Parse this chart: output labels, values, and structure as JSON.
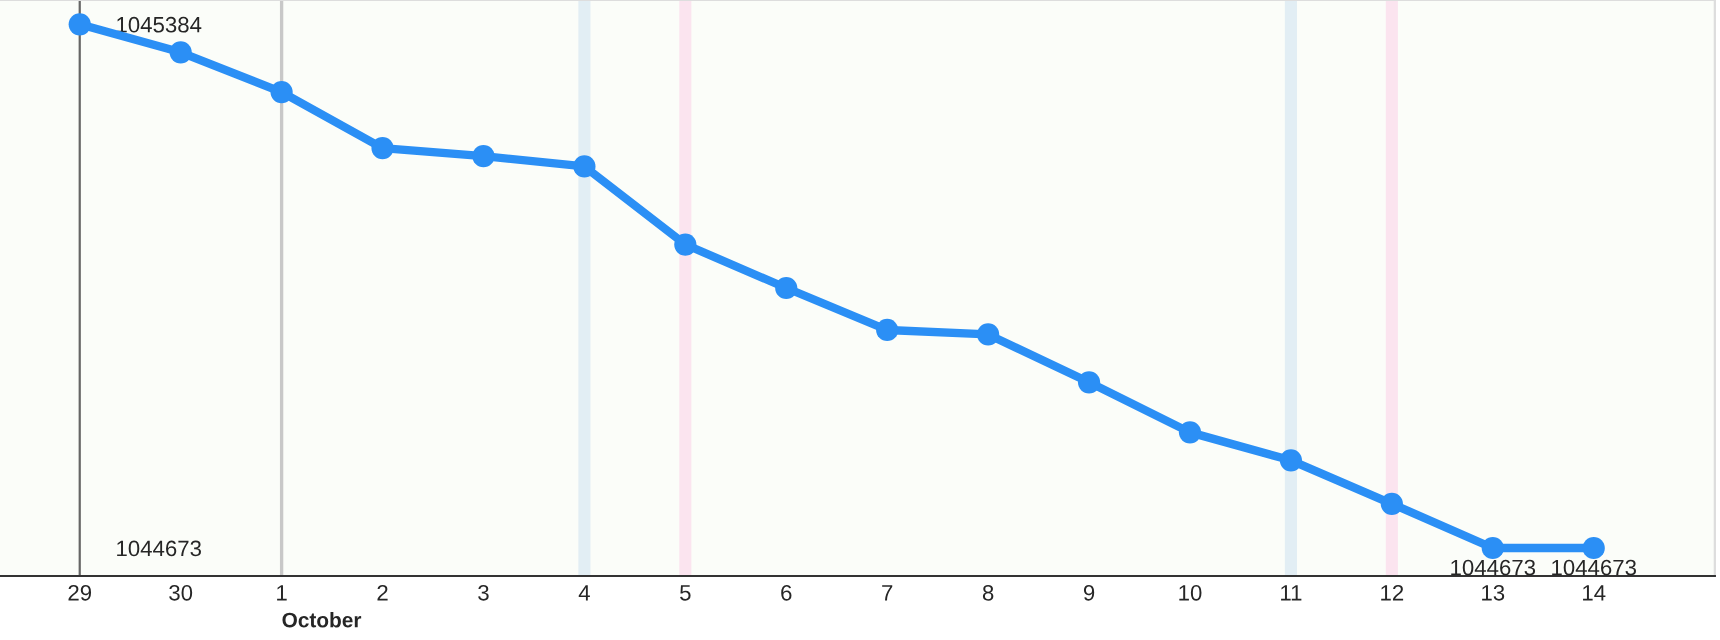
{
  "chart_data": {
    "type": "line",
    "categories": [
      "29",
      "30",
      "1",
      "2",
      "3",
      "4",
      "5",
      "6",
      "7",
      "8",
      "9",
      "10",
      "11",
      "12",
      "13",
      "14"
    ],
    "series": [
      {
        "color": "#2b8ff5",
        "values": [
          1045384,
          1045346,
          1045292,
          1045216,
          1045205,
          1045191,
          1045085,
          1045026,
          1044969,
          1044963,
          1044898,
          1044830,
          1044792,
          1044733,
          1044673,
          1044673
        ],
        "value_labels": [
          null,
          null,
          null,
          null,
          null,
          null,
          null,
          null,
          null,
          null,
          null,
          null,
          null,
          null,
          "1044673",
          "1044673"
        ]
      }
    ],
    "ylim": [
      1044635,
      1045417
    ],
    "yticks": [
      1044673,
      1045384
    ],
    "ref_lines": [
      {
        "axis": "x",
        "value": "1",
        "color": "#c8c8c8"
      }
    ],
    "bands": [
      {
        "axis": "x",
        "from": "4",
        "to": "4",
        "color": "#e2eef4"
      },
      {
        "axis": "x",
        "from": "11",
        "to": "11",
        "color": "#e2eef4"
      },
      {
        "axis": "x",
        "from": "5",
        "to": "5",
        "color": "#fbe4ef"
      },
      {
        "axis": "x",
        "from": "12",
        "to": "12",
        "color": "#fbe4ef"
      }
    ],
    "annotations": [
      "October"
    ],
    "marker": "circle",
    "line_style": "solid",
    "grid": false
  }
}
